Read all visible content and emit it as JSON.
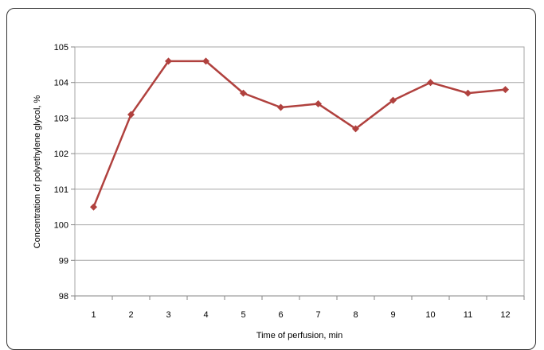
{
  "chart_data": {
    "type": "line",
    "title": "",
    "xlabel": "Time of perfusion, min",
    "ylabel": "Concentration of polyethylene glycol, %",
    "x": [
      "1",
      "2",
      "3",
      "4",
      "5",
      "6",
      "7",
      "8",
      "9",
      "10",
      "11",
      "12"
    ],
    "series": [
      {
        "values": [
          100.5,
          103.1,
          104.6,
          104.6,
          103.7,
          103.3,
          103.4,
          102.7,
          103.5,
          104.0,
          103.7,
          103.8
        ],
        "color": "#b0413e",
        "marker": "diamond"
      }
    ],
    "ylim": [
      98,
      105
    ],
    "yticks": [
      98,
      99,
      100,
      101,
      102,
      103,
      104,
      105
    ],
    "grid": true,
    "legend": "none"
  },
  "colors": {
    "line": "#b0413e",
    "grid": "#a6a6a6",
    "axis": "#868686"
  }
}
